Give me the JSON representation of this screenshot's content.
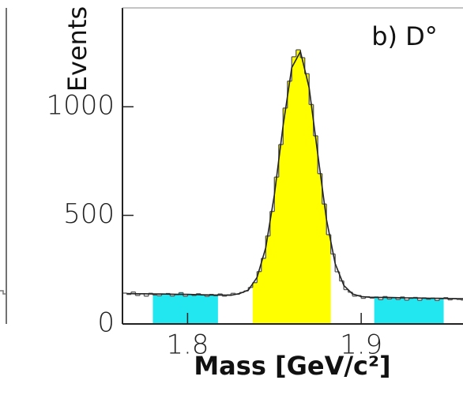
{
  "chart_data": {
    "type": "histogram",
    "annotation": "b) D°",
    "xlabel": "Mass [GeV/c²]",
    "ylabel": "Events",
    "xlim": [
      1.7625,
      1.96
    ],
    "ylim": [
      0,
      1455
    ],
    "xticks": [
      1.8,
      1.9
    ],
    "yticks": [
      0,
      500,
      1000
    ],
    "color": "#555555",
    "bins": [
      1.7625,
      1.765,
      1.7675,
      1.77,
      1.7725,
      1.775,
      1.7775,
      1.78,
      1.7825,
      1.785,
      1.7875,
      1.79,
      1.7925,
      1.795,
      1.7975,
      1.8,
      1.8025,
      1.805,
      1.8075,
      1.81,
      1.8125,
      1.815,
      1.8175,
      1.82,
      1.8225,
      1.825,
      1.8275,
      1.83,
      1.8325,
      1.835,
      1.8375,
      1.84,
      1.8425,
      1.845,
      1.8475,
      1.85,
      1.8525,
      1.855,
      1.8575,
      1.86,
      1.8625,
      1.865,
      1.8675,
      1.87,
      1.8725,
      1.875,
      1.8775,
      1.88,
      1.8825,
      1.885,
      1.8875,
      1.89,
      1.8925,
      1.895,
      1.8975,
      1.9,
      1.9025,
      1.905,
      1.9075,
      1.91,
      1.9125,
      1.915,
      1.9175,
      1.92,
      1.9225,
      1.925,
      1.9275,
      1.93,
      1.9325,
      1.935,
      1.9375,
      1.94,
      1.9425,
      1.945,
      1.9475,
      1.95,
      1.9525,
      1.955,
      1.9575,
      1.96
    ],
    "counts": [
      142,
      136,
      147,
      131,
      139,
      128,
      141,
      133,
      130,
      137,
      140,
      129,
      135,
      144,
      128,
      136,
      131,
      139,
      133,
      127,
      136,
      130,
      138,
      128,
      134,
      141,
      137,
      145,
      152,
      168,
      190,
      241,
      302,
      405,
      518,
      676,
      826,
      994,
      1118,
      1230,
      1262,
      1226,
      1152,
      1010,
      866,
      692,
      552,
      411,
      322,
      240,
      198,
      158,
      146,
      128,
      131,
      118,
      125,
      119,
      124,
      112,
      126,
      115,
      121,
      113,
      124,
      110,
      118,
      122,
      109,
      120,
      114,
      119,
      108,
      116,
      121,
      111,
      117,
      113,
      110
    ],
    "regions": [
      {
        "range": [
          1.78,
          1.8175
        ],
        "color": "#22e6f0"
      },
      {
        "range": [
          1.8375,
          1.8825
        ],
        "color": "#ffff00"
      },
      {
        "range": [
          1.9075,
          1.9475
        ],
        "color": "#22e6f0"
      }
    ],
    "fit": {
      "color": "#222222",
      "x": [
        1.765,
        1.77,
        1.775,
        1.78,
        1.785,
        1.79,
        1.795,
        1.8,
        1.805,
        1.81,
        1.815,
        1.82,
        1.825,
        1.83,
        1.835,
        1.84,
        1.845,
        1.85,
        1.855,
        1.86,
        1.865,
        1.87,
        1.875,
        1.88,
        1.885,
        1.89,
        1.895,
        1.9,
        1.905,
        1.91,
        1.915,
        1.92,
        1.925,
        1.93,
        1.935,
        1.94,
        1.945,
        1.95,
        1.955,
        1.96
      ],
      "values": [
        140,
        139,
        139,
        138,
        138,
        137,
        136,
        136,
        135,
        134,
        133,
        133,
        132,
        140,
        156,
        214,
        350,
        595,
        912,
        1180,
        1254,
        1088,
        781,
        481,
        278,
        177,
        138,
        126,
        123,
        122,
        122,
        121,
        120,
        120,
        119,
        118,
        118,
        117,
        116,
        116
      ]
    }
  }
}
